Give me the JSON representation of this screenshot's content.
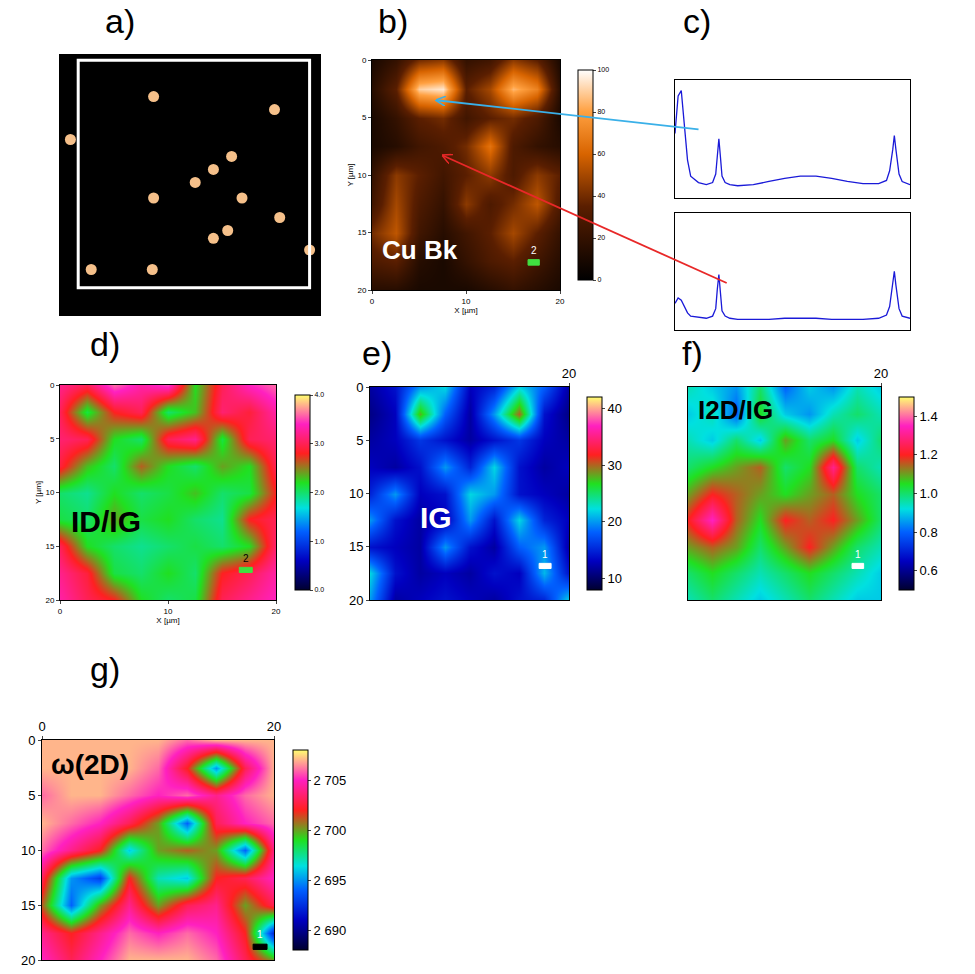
{
  "chart_data": [
    {
      "letter": "a)",
      "type": "scatter",
      "marker": "circle",
      "color": "#f5c08a",
      "x": [
        7.2,
        16.5,
        13.2,
        11.8,
        10.4,
        7.2,
        14.0,
        16.9,
        12.9,
        11.8,
        2.4,
        7.1,
        0.8,
        19.2
      ],
      "y": [
        3.2,
        4.2,
        7.8,
        8.8,
        9.8,
        11.0,
        11.0,
        12.5,
        13.5,
        14.1,
        16.5,
        16.5,
        6.5,
        15.0
      ],
      "region": {
        "x": [
          1.4,
          19.2
        ],
        "y": [
          0.4,
          17.9
        ]
      },
      "xlim": [
        0,
        20
      ],
      "ylim": [
        20,
        0
      ],
      "tick_labels": false
    },
    {
      "letter": "b)",
      "type": "heatmap",
      "title": "Cu Bk",
      "x_label": "X [µm]",
      "y_label": "Y [µm]",
      "scale_label": "2",
      "x": [
        0,
        2.5,
        5,
        7.5,
        10,
        12.5,
        15,
        17.5,
        20
      ],
      "y": [
        0,
        2.5,
        5,
        7.5,
        10,
        12.5,
        15,
        17.5,
        20
      ],
      "z": [
        [
          10,
          20,
          40,
          45,
          20,
          25,
          45,
          35,
          10
        ],
        [
          15,
          35,
          90,
          95,
          35,
          50,
          85,
          70,
          15
        ],
        [
          10,
          20,
          35,
          40,
          25,
          35,
          40,
          30,
          10
        ],
        [
          10,
          15,
          25,
          30,
          40,
          65,
          30,
          20,
          15
        ],
        [
          20,
          45,
          35,
          25,
          35,
          45,
          30,
          45,
          35
        ],
        [
          25,
          50,
          30,
          20,
          45,
          30,
          40,
          55,
          30
        ],
        [
          40,
          55,
          25,
          15,
          25,
          35,
          50,
          35,
          20
        ],
        [
          30,
          35,
          15,
          10,
          20,
          30,
          35,
          25,
          15
        ],
        [
          15,
          15,
          10,
          10,
          10,
          15,
          20,
          15,
          10
        ]
      ],
      "xlim": [
        0,
        20
      ],
      "ylim": [
        20,
        0
      ],
      "xticks": [
        0,
        10,
        20
      ],
      "yticks": [
        0,
        5,
        10,
        15,
        20
      ],
      "colorbar": {
        "range": [
          0,
          100
        ],
        "ticks": [
          0,
          20,
          40,
          60,
          80,
          100
        ]
      }
    },
    {
      "letter": "c)",
      "type": "line",
      "color": "#1a1ad8",
      "tick_labels": false,
      "x": [
        1300,
        1320,
        1340,
        1360,
        1380,
        1400,
        1450,
        1500,
        1540,
        1560,
        1570,
        1580,
        1590,
        1600,
        1620,
        1650,
        1700,
        1800,
        1900,
        2000,
        2100,
        2200,
        2300,
        2400,
        2500,
        2600,
        2650,
        2670,
        2690,
        2700,
        2710,
        2730,
        2750,
        2800
      ],
      "series": [
        {
          "at": [
            6.2,
            3.5
          ],
          "values": [
            60,
            95,
            100,
            70,
            35,
            20,
            14,
            12,
            14,
            22,
            40,
            55,
            38,
            20,
            14,
            12,
            11,
            12,
            15,
            18,
            20,
            20,
            18,
            15,
            13,
            13,
            16,
            25,
            45,
            58,
            45,
            22,
            15,
            12
          ]
        },
        {
          "at": [
            6.8,
            8.3
          ],
          "values": [
            25,
            30,
            28,
            22,
            16,
            13,
            12,
            11,
            13,
            20,
            38,
            52,
            35,
            18,
            13,
            11,
            10,
            10,
            10,
            11,
            11,
            11,
            10,
            10,
            10,
            11,
            14,
            22,
            42,
            55,
            42,
            20,
            13,
            11
          ]
        }
      ],
      "xlim": [
        1300,
        2800
      ],
      "ylim": [
        0,
        110
      ]
    },
    {
      "letter": "d)",
      "type": "heatmap",
      "title": "ID/IG",
      "x_label": "X [µm]",
      "y_label": "Y [µm]",
      "scale_label": "2",
      "x": [
        0,
        2.5,
        5,
        7.5,
        10,
        12.5,
        15,
        17.5,
        20
      ],
      "y": [
        0,
        2.5,
        5,
        7.5,
        10,
        12.5,
        15,
        17.5,
        20
      ],
      "z": [
        [
          3.2,
          3.0,
          3.6,
          3.3,
          3.5,
          2.2,
          3.0,
          3.4,
          3.6
        ],
        [
          3.0,
          2.1,
          2.8,
          3.0,
          2.0,
          2.3,
          3.1,
          2.9,
          3.3
        ],
        [
          3.1,
          3.0,
          2.2,
          2.0,
          3.0,
          3.2,
          2.1,
          3.0,
          3.1
        ],
        [
          2.9,
          2.3,
          2.0,
          2.6,
          2.2,
          2.0,
          2.4,
          2.2,
          3.0
        ],
        [
          2.0,
          1.9,
          2.2,
          2.0,
          2.1,
          2.3,
          2.0,
          2.1,
          2.8
        ],
        [
          2.1,
          2.0,
          2.4,
          2.1,
          2.2,
          2.0,
          1.9,
          2.8,
          3.0
        ],
        [
          3.0,
          2.2,
          2.0,
          1.9,
          2.0,
          2.1,
          2.0,
          2.2,
          3.1
        ],
        [
          3.2,
          2.9,
          2.1,
          2.0,
          2.2,
          2.0,
          2.8,
          3.0,
          3.3
        ],
        [
          3.3,
          3.0,
          2.8,
          2.2,
          2.0,
          2.1,
          3.0,
          3.2,
          3.4
        ]
      ],
      "xlim": [
        0,
        20
      ],
      "ylim": [
        20,
        0
      ],
      "xticks": [
        0,
        10,
        20
      ],
      "yticks": [
        0,
        5,
        10,
        15,
        20
      ],
      "colorbar": {
        "range": [
          0,
          4
        ],
        "ticks": [
          {
            "value": 0,
            "label": "0.0"
          },
          {
            "value": 1,
            "label": "1.0"
          },
          {
            "value": 2,
            "label": "2.0"
          },
          {
            "value": 3,
            "label": "3.0"
          },
          {
            "value": 4,
            "label": "4.0"
          }
        ]
      }
    },
    {
      "letter": "e)",
      "type": "heatmap",
      "title": "IG",
      "scale_label": "1",
      "x": [
        0,
        2.5,
        5,
        7.5,
        10,
        12.5,
        15,
        17.5,
        20
      ],
      "y": [
        0,
        2.5,
        5,
        7.5,
        10,
        12.5,
        15,
        17.5,
        20
      ],
      "z": [
        [
          12,
          14,
          20,
          22,
          13,
          15,
          22,
          18,
          12
        ],
        [
          11,
          13,
          28,
          18,
          12,
          20,
          30,
          14,
          11
        ],
        [
          12,
          13,
          16,
          14,
          12,
          14,
          16,
          13,
          12
        ],
        [
          13,
          12,
          14,
          20,
          15,
          22,
          14,
          12,
          13
        ],
        [
          15,
          20,
          13,
          14,
          22,
          20,
          14,
          13,
          12
        ],
        [
          20,
          14,
          12,
          13,
          20,
          14,
          22,
          15,
          13
        ],
        [
          14,
          13,
          12,
          20,
          14,
          12,
          18,
          20,
          12
        ],
        [
          22,
          14,
          12,
          13,
          12,
          14,
          13,
          21,
          14
        ],
        [
          20,
          12,
          13,
          14,
          13,
          12,
          14,
          15,
          22
        ]
      ],
      "xlim": [
        0,
        20
      ],
      "ylim": [
        20,
        0
      ],
      "xticks": [
        20
      ],
      "yticks": [
        0,
        5,
        10,
        15,
        20
      ],
      "colorbar": {
        "range": [
          8,
          42
        ],
        "ticks": [
          10,
          20,
          30,
          40
        ]
      }
    },
    {
      "letter": "f)",
      "type": "heatmap",
      "title": "I2D/IG",
      "scale_label": "1",
      "tick_labels": "x",
      "x": [
        0,
        2.5,
        5,
        7.5,
        10,
        12.5,
        15,
        17.5,
        20
      ],
      "y": [
        0,
        2.5,
        5,
        7.5,
        10,
        12.5,
        15,
        17.5,
        20
      ],
      "z": [
        [
          0.95,
          0.9,
          0.85,
          1.0,
          0.8,
          0.9,
          0.85,
          0.95,
          0.9
        ],
        [
          0.9,
          0.95,
          0.8,
          1.05,
          0.9,
          0.85,
          0.95,
          1.0,
          0.95
        ],
        [
          0.95,
          0.9,
          1.0,
          0.9,
          1.1,
          1.0,
          1.05,
          0.9,
          1.0
        ],
        [
          1.0,
          1.05,
          1.1,
          1.15,
          1.0,
          1.05,
          1.3,
          1.0,
          0.95
        ],
        [
          1.1,
          1.2,
          1.15,
          1.1,
          1.05,
          1.1,
          1.15,
          1.05,
          1.0
        ],
        [
          1.2,
          1.35,
          1.15,
          1.05,
          1.2,
          1.15,
          1.2,
          1.1,
          1.0
        ],
        [
          1.1,
          1.15,
          1.1,
          1.0,
          1.1,
          1.2,
          1.1,
          1.0,
          0.95
        ],
        [
          1.0,
          1.05,
          1.0,
          0.95,
          1.0,
          1.05,
          1.0,
          0.95,
          0.9
        ],
        [
          0.95,
          1.0,
          0.95,
          0.9,
          0.95,
          1.0,
          0.95,
          0.9,
          0.9
        ]
      ],
      "xlim": [
        0,
        20
      ],
      "ylim": [
        20,
        0
      ],
      "xticks": [
        20
      ],
      "colorbar": {
        "range": [
          0.5,
          1.5
        ],
        "ticks": [
          0.6,
          0.8,
          {
            "value": 1.0,
            "label": "1.0"
          },
          1.2,
          1.4
        ]
      }
    },
    {
      "letter": "g)",
      "type": "heatmap",
      "title": "ω(2D)",
      "scale_label": "1",
      "x": [
        0,
        2.5,
        5,
        7.5,
        10,
        12.5,
        15,
        17.5,
        20
      ],
      "y": [
        0,
        2.5,
        5,
        7.5,
        10,
        12.5,
        15,
        17.5,
        20
      ],
      "z": [
        [
          2707,
          2707,
          2707,
          2707,
          2707,
          2706,
          2707,
          2707,
          2707
        ],
        [
          2707,
          2707,
          2707,
          2707,
          2706,
          2702,
          2695,
          2703,
          2707
        ],
        [
          2706,
          2707,
          2707,
          2706,
          2705,
          2706,
          2704,
          2706,
          2707
        ],
        [
          2707,
          2706,
          2705,
          2703,
          2700,
          2694,
          2703,
          2705,
          2706
        ],
        [
          2706,
          2704,
          2702,
          2696,
          2700,
          2701,
          2700,
          2694,
          2704
        ],
        [
          2703,
          2695,
          2693,
          2702,
          2697,
          2696,
          2702,
          2703,
          2705
        ],
        [
          2701,
          2694,
          2700,
          2704,
          2700,
          2703,
          2704,
          2700,
          2703
        ],
        [
          2704,
          2702,
          2704,
          2706,
          2705,
          2706,
          2705,
          2702,
          2692
        ],
        [
          2705,
          2703,
          2705,
          2707,
          2707,
          2707,
          2706,
          2703,
          2700
        ]
      ],
      "xlim": [
        0,
        20
      ],
      "ylim": [
        20,
        0
      ],
      "xticks": [
        0,
        20
      ],
      "yticks": [
        0,
        5,
        10,
        15,
        20
      ],
      "colorbar": {
        "range": [
          2688,
          2708
        ],
        "ticks": [
          {
            "value": 2690,
            "label": "2 690"
          },
          {
            "value": 2695,
            "label": "2 695"
          },
          {
            "value": 2700,
            "label": "2 700"
          },
          {
            "value": 2705,
            "label": "2 705"
          }
        ]
      }
    }
  ]
}
